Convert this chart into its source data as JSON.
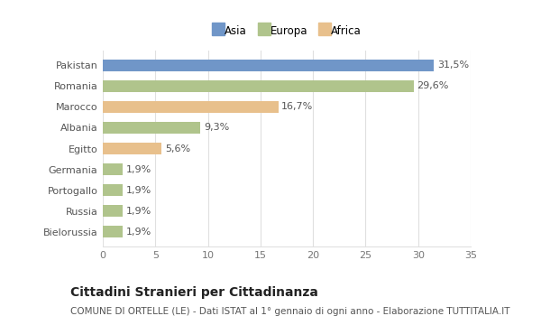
{
  "categories": [
    "Pakistan",
    "Romania",
    "Marocco",
    "Albania",
    "Egitto",
    "Germania",
    "Portogallo",
    "Russia",
    "Bielorussia"
  ],
  "values": [
    31.5,
    29.6,
    16.7,
    9.3,
    5.6,
    1.9,
    1.9,
    1.9,
    1.9
  ],
  "labels": [
    "31,5%",
    "29,6%",
    "16,7%",
    "9,3%",
    "5,6%",
    "1,9%",
    "1,9%",
    "1,9%",
    "1,9%"
  ],
  "colors": [
    "#7096c8",
    "#b0c48c",
    "#e8c08c",
    "#b0c48c",
    "#e8c08c",
    "#b0c48c",
    "#b0c48c",
    "#b0c48c",
    "#b0c48c"
  ],
  "legend_labels": [
    "Asia",
    "Europa",
    "Africa"
  ],
  "legend_colors": [
    "#7096c8",
    "#b0c48c",
    "#e8c08c"
  ],
  "title": "Cittadini Stranieri per Cittadinanza",
  "subtitle": "COMUNE DI ORTELLE (LE) - Dati ISTAT al 1° gennaio di ogni anno - Elaborazione TUTTITALIA.IT",
  "xlim": [
    0,
    35
  ],
  "xticks": [
    0,
    5,
    10,
    15,
    20,
    25,
    30,
    35
  ],
  "background_color": "#ffffff",
  "plot_bg_color": "#ffffff",
  "grid_color": "#e0e0e0",
  "title_fontsize": 10,
  "subtitle_fontsize": 7.5,
  "label_fontsize": 8,
  "tick_fontsize": 8,
  "bar_height": 0.55
}
